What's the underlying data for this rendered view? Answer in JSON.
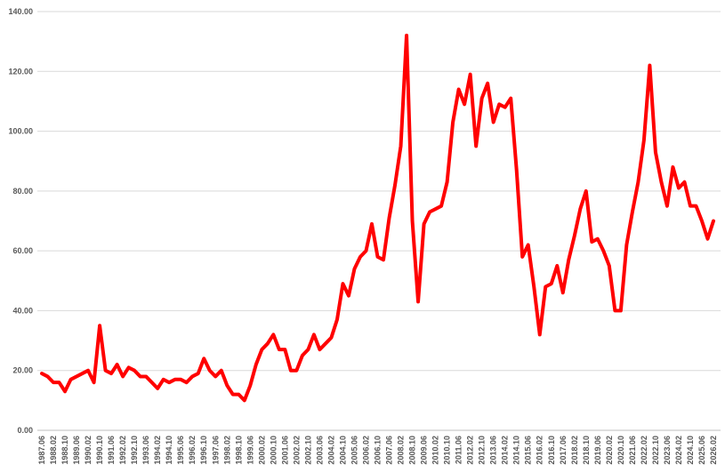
{
  "chart_data": {
    "type": "line",
    "categories": [
      "1987.06",
      null,
      "1988.02",
      null,
      "1988.10",
      null,
      "1989.06",
      null,
      "1990.02",
      null,
      "1990.10",
      null,
      "1991.06",
      null,
      "1992.02",
      null,
      "1992.10",
      null,
      "1993.06",
      null,
      "1994.02",
      null,
      "1994.10",
      null,
      "1995.06",
      null,
      "1996.02",
      null,
      "1996.10",
      null,
      "1997.06",
      null,
      "1998.02",
      null,
      "1998.10",
      null,
      "1999.06",
      null,
      "2000.02",
      null,
      "2000.10",
      null,
      "2001.06",
      null,
      "2002.02",
      null,
      "2002.10",
      null,
      "2003.06",
      null,
      "2004.02",
      null,
      "2004.10",
      null,
      "2005.06",
      null,
      "2006.02",
      null,
      "2006.10",
      null,
      "2007.06",
      null,
      "2008.02",
      null,
      "2008.10",
      null,
      "2009.06",
      null,
      "2010.02",
      null,
      "2010.10",
      null,
      "2011.06",
      null,
      "2012.02",
      null,
      "2012.10",
      null,
      "2013.06",
      null,
      "2014.02",
      null,
      "2014.10",
      null,
      "2015.06",
      null,
      "2016.02",
      null,
      "2016.10",
      null,
      "2017.06",
      null,
      "2018.02",
      null,
      "2018.10",
      null,
      "2019.06",
      null,
      "2020.02",
      null,
      "2020.10",
      null,
      "2021.06",
      null,
      "2022.02",
      null,
      "2022.10",
      null,
      "2023.06",
      null,
      "2024.02",
      null,
      "2024.10",
      null,
      "2025.06",
      null,
      "2026.02"
    ],
    "values": [
      19,
      18,
      16,
      16,
      13,
      17,
      18,
      19,
      20,
      16,
      35,
      20,
      19,
      22,
      18,
      21,
      20,
      18,
      18,
      16,
      14,
      17,
      16,
      17,
      17,
      16,
      18,
      19,
      24,
      20,
      18,
      20,
      15,
      12,
      12,
      10,
      15,
      22,
      27,
      29,
      32,
      27,
      27,
      20,
      20,
      25,
      27,
      32,
      27,
      29,
      31,
      37,
      49,
      45,
      54,
      58,
      60,
      69,
      58,
      57,
      71,
      82,
      95,
      132,
      70,
      43,
      69,
      73,
      74,
      75,
      83,
      103,
      114,
      109,
      119,
      95,
      111,
      116,
      103,
      109,
      108,
      111,
      87,
      58,
      62,
      48,
      32,
      48,
      49,
      55,
      46,
      57,
      65,
      74,
      80,
      63,
      64,
      60,
      55,
      40,
      40,
      62,
      73,
      83,
      97,
      122,
      93,
      83,
      75,
      88,
      81,
      83,
      75,
      75,
      70,
      64,
      70
    ],
    "color": "#ff0000",
    "ylim": [
      0,
      140
    ],
    "yticks": [
      {
        "value": 0,
        "label": "0.00"
      },
      {
        "value": 20,
        "label": "20.00"
      },
      {
        "value": 40,
        "label": "40.00"
      },
      {
        "value": 60,
        "label": "60.00"
      },
      {
        "value": 80,
        "label": "80.00"
      },
      {
        "value": 100,
        "label": "100.00"
      },
      {
        "value": 120,
        "label": "120.00"
      },
      {
        "value": 140,
        "label": "140.00"
      }
    ],
    "grid": true
  }
}
